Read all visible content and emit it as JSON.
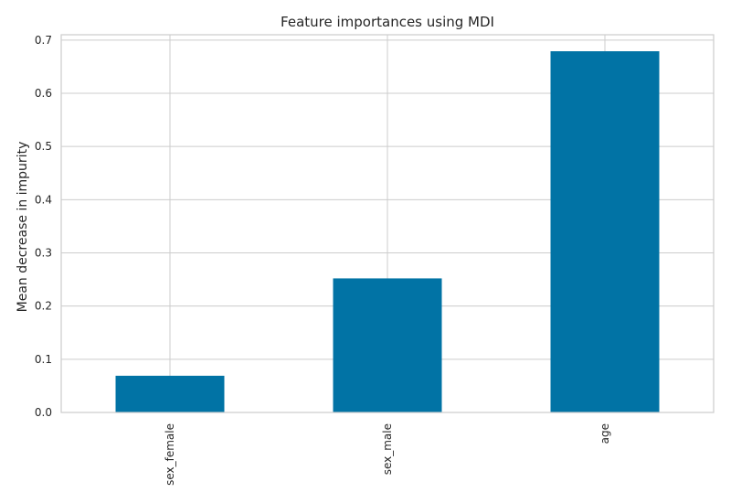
{
  "chart_data": {
    "type": "bar",
    "title": "Feature importances using MDI",
    "xlabel": "",
    "ylabel": "Mean decrease in impurity",
    "categories": [
      "sex_female",
      "sex_male",
      "age"
    ],
    "values": [
      0.069,
      0.252,
      0.679
    ],
    "ylim": [
      0,
      0.71
    ],
    "yticks": [
      0.0,
      0.1,
      0.2,
      0.3,
      0.4,
      0.5,
      0.6,
      0.7
    ],
    "ytick_labels": [
      "0.0",
      "0.1",
      "0.2",
      "0.3",
      "0.4",
      "0.5",
      "0.6",
      "0.7"
    ],
    "grid": true,
    "legend": "none",
    "bar_color": "#0173a5"
  }
}
